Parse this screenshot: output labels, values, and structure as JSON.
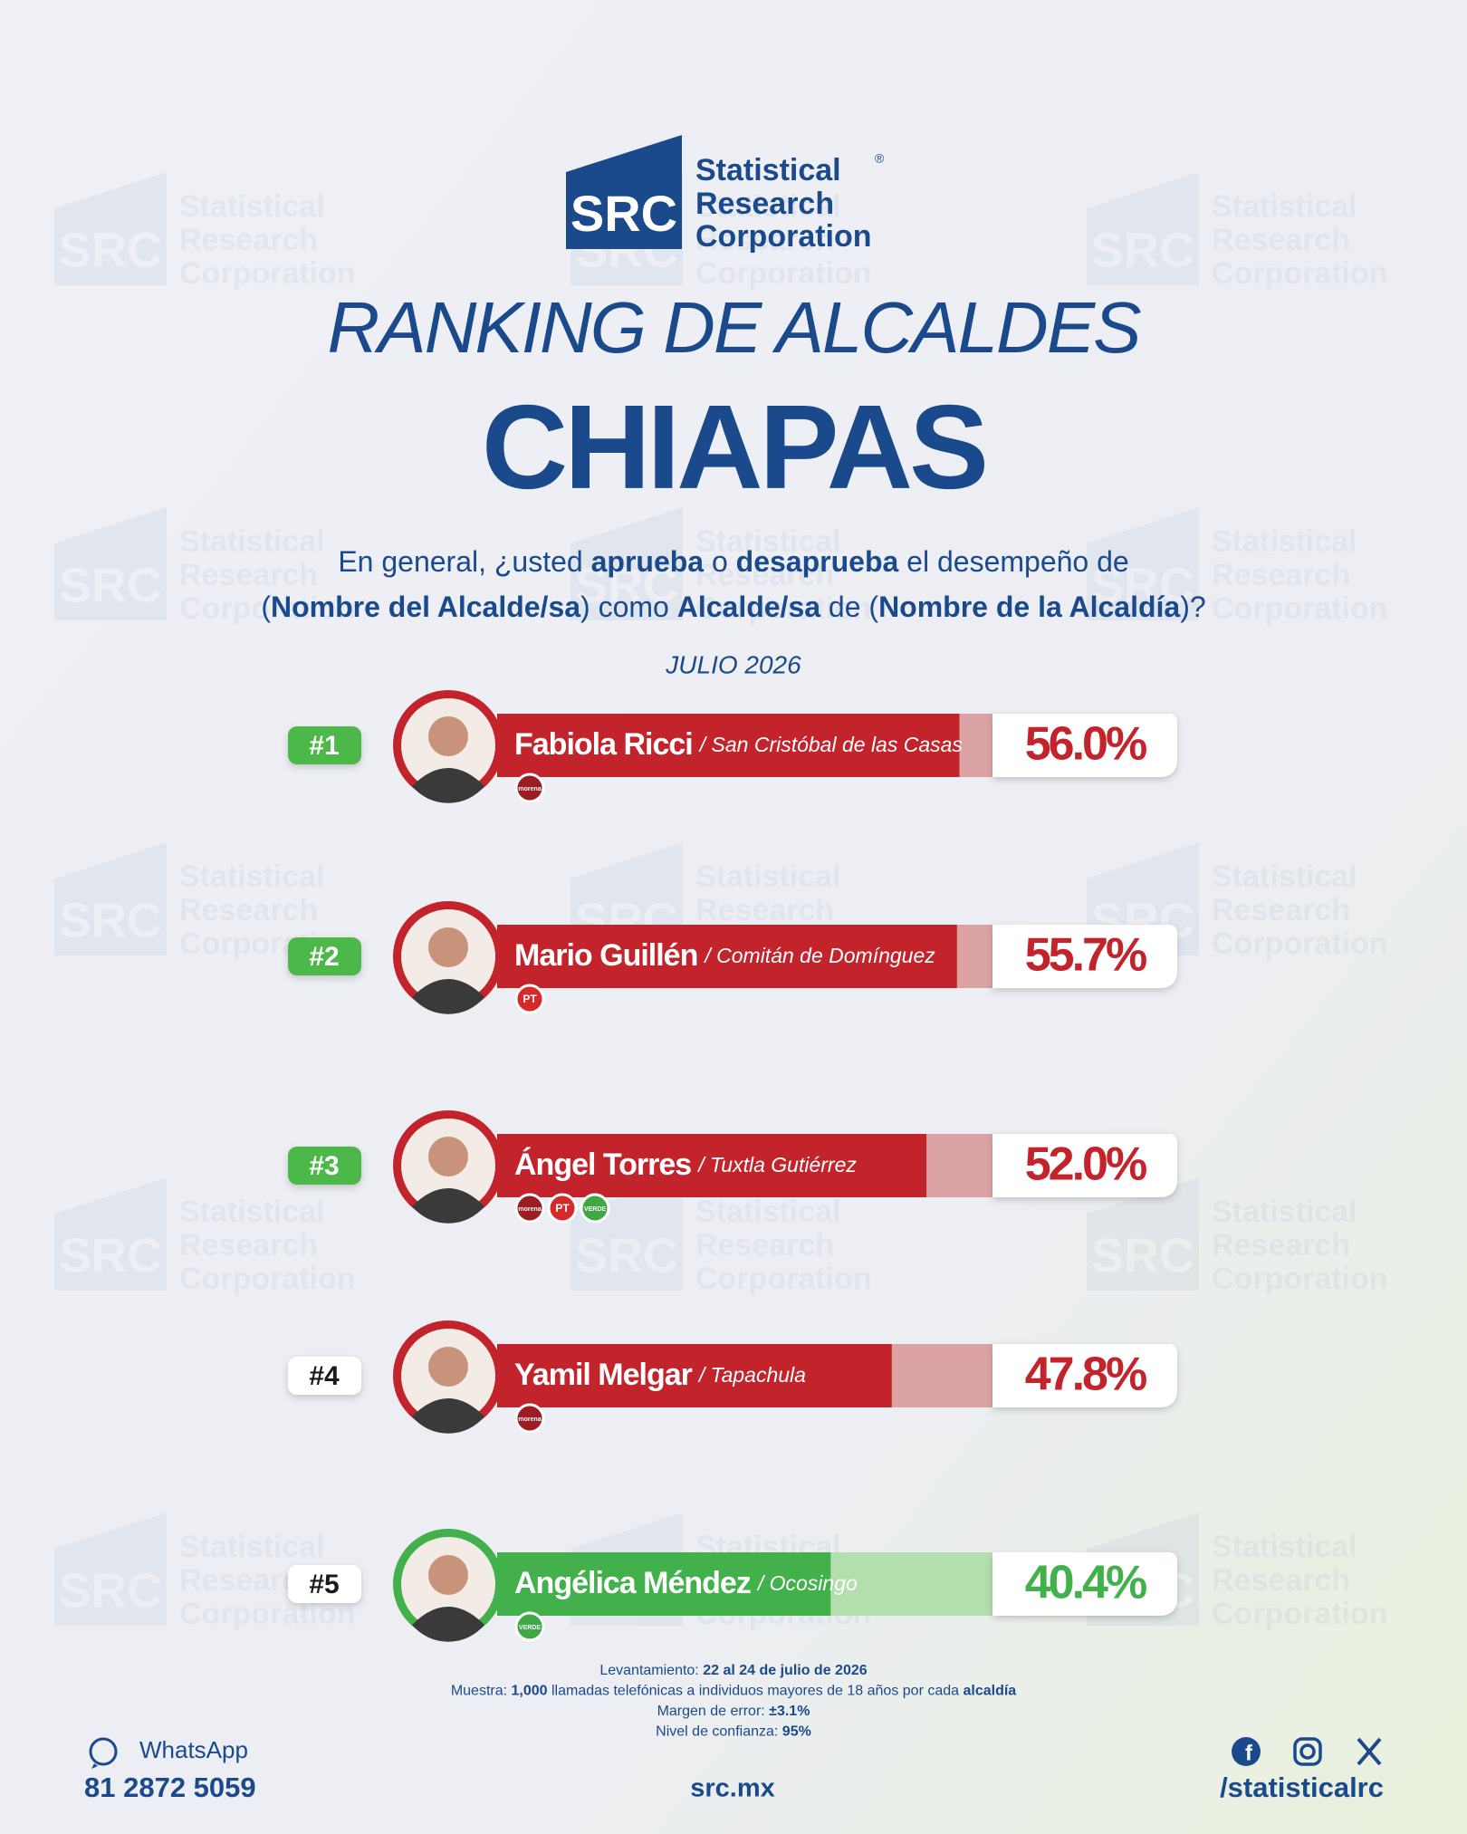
{
  "logo": {
    "mark": "SRC",
    "lines": [
      "Statistical",
      "Research",
      "Corporation"
    ],
    "registered": "®"
  },
  "chart_data": {
    "type": "bar",
    "title": "RANKING DE ALCALDES",
    "subtitle": "CHIAPAS",
    "question": [
      [
        {
          "text": "En general, ¿usted ",
          "bold": false
        },
        {
          "text": "aprueba",
          "bold": true
        },
        {
          "text": " o ",
          "bold": false
        },
        {
          "text": "desaprueba",
          "bold": true
        },
        {
          "text": " el desempeño de",
          "bold": false
        }
      ],
      [
        {
          "text": "(",
          "bold": false
        },
        {
          "text": "Nombre del Alcalde/sa",
          "bold": true
        },
        {
          "text": ") como ",
          "bold": false
        },
        {
          "text": "Alcalde/sa",
          "bold": true
        },
        {
          "text": " de (",
          "bold": false
        },
        {
          "text": "Nombre de la Alcaldía",
          "bold": true
        },
        {
          "text": ")?",
          "bold": false
        }
      ]
    ],
    "date": "JULIO 2026",
    "xlim": [
      0,
      60
    ],
    "ranks": [
      "#1",
      "#2",
      "#3",
      "#4",
      "#5"
    ],
    "categories": [
      "Fabiola Ricci",
      "Mario Guillén",
      "Ángel Torres",
      "Yamil Melgar",
      "Angélica Méndez"
    ],
    "places": [
      "/ San Cristóbal de las Casas",
      "/ Comitán de Domínguez",
      "/ Tuxtla Gutiérrez",
      "/ Tapachula",
      "/ Ocosingo"
    ],
    "values": [
      56.0,
      55.7,
      52.0,
      47.8,
      40.4
    ],
    "value_labels": [
      "56.0%",
      "55.7%",
      "52.0%",
      "47.8%",
      "40.4%"
    ],
    "colors": [
      "#c3242b",
      "#c3242b",
      "#c3242b",
      "#c3242b",
      "#43b14b"
    ],
    "track_colors": [
      "#dba3a3",
      "#dba3a3",
      "#dba3a3",
      "#dba3a3",
      "#b3dfae"
    ],
    "rank_colors": [
      "#4cb848",
      "#4cb848",
      "#4cb848",
      "#ffffff",
      "#ffffff"
    ],
    "rank_text_colors": [
      "#ffffff",
      "#ffffff",
      "#ffffff",
      "#1a1a1a",
      "#1a1a1a"
    ],
    "parties": [
      [
        {
          "label": "morena",
          "color": "#9b1c22"
        }
      ],
      [
        {
          "label": "PT",
          "color": "#d42a2a"
        }
      ],
      [
        {
          "label": "morena",
          "color": "#9b1c22"
        },
        {
          "label": "PT",
          "color": "#d42a2a"
        },
        {
          "label": "VERDE",
          "color": "#3ea845"
        }
      ],
      [
        {
          "label": "morena",
          "color": "#9b1c22"
        }
      ],
      [
        {
          "label": "VERDE",
          "color": "#3ea845"
        }
      ]
    ]
  },
  "methodology": [
    [
      {
        "text": "Levantamiento: ",
        "bold": false
      },
      {
        "text": "22 al 24 de julio de 2026",
        "bold": true
      }
    ],
    [
      {
        "text": "Muestra: ",
        "bold": false
      },
      {
        "text": "1,000",
        "bold": true
      },
      {
        "text": " llamadas telefónicas a individuos mayores de 18 años por cada ",
        "bold": false
      },
      {
        "text": "alcaldía",
        "bold": true
      }
    ],
    [
      {
        "text": "Margen de error: ",
        "bold": false
      },
      {
        "text": "±3.1%",
        "bold": true
      }
    ],
    [
      {
        "text": "Nivel de confianza: ",
        "bold": false
      },
      {
        "text": "95%",
        "bold": true
      }
    ]
  ],
  "footer": {
    "whatsapp_label": "WhatsApp",
    "phone": "81 2872 5059",
    "website": "src.mx",
    "social_handle": "/statisticalrc"
  }
}
